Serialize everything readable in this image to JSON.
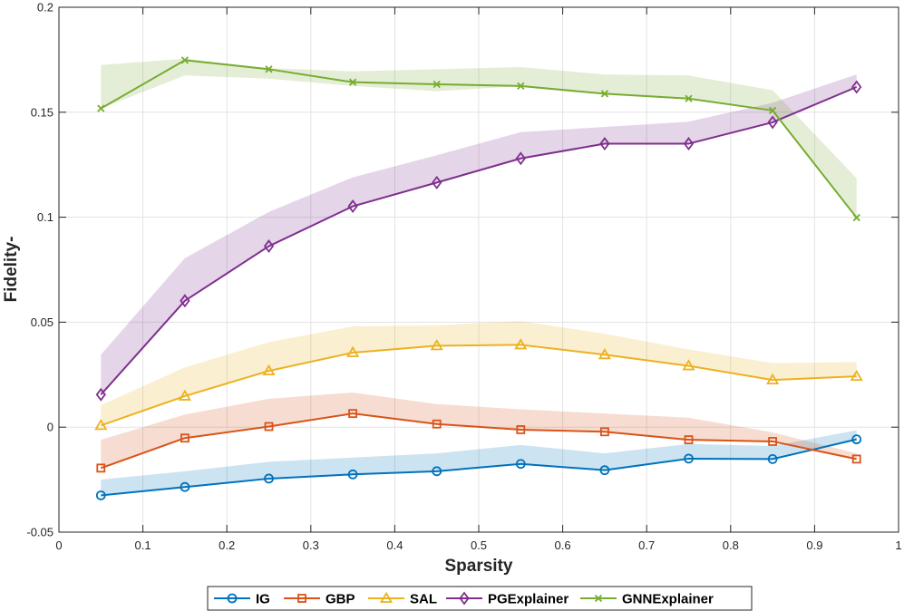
{
  "chart_data": {
    "type": "line",
    "title": "",
    "xlabel": "Sparsity",
    "ylabel": "Fidelity-",
    "xlim": [
      0,
      1
    ],
    "ylim": [
      -0.05,
      0.2
    ],
    "xticks": [
      0,
      0.1,
      0.2,
      0.3,
      0.4,
      0.5,
      0.6,
      0.7,
      0.8,
      0.9,
      1
    ],
    "xtick_labels": [
      "0",
      "0.1",
      "0.2",
      "0.3",
      "0.4",
      "0.5",
      "0.6",
      "0.7",
      "0.8",
      "0.9",
      "1"
    ],
    "yticks": [
      -0.05,
      0,
      0.05,
      0.1,
      0.15,
      0.2
    ],
    "ytick_labels": [
      "-0.05",
      "0",
      "0.05",
      "0.1",
      "0.15",
      "0.2"
    ],
    "grid": true,
    "legend_position": "bottom",
    "x": [
      0.05,
      0.15,
      0.25,
      0.35,
      0.45,
      0.55,
      0.65,
      0.75,
      0.85,
      0.95
    ],
    "series": [
      {
        "name": "IG",
        "color": "#0072BD",
        "marker": "circle",
        "values": [
          -0.0325,
          -0.0285,
          -0.0245,
          -0.0225,
          -0.021,
          -0.0175,
          -0.0205,
          -0.015,
          -0.0152,
          -0.0058
        ],
        "band_upper": [
          -0.025,
          -0.021,
          -0.0165,
          -0.0145,
          -0.0125,
          -0.0085,
          -0.0125,
          -0.008,
          -0.009,
          -0.0015
        ],
        "band_lower": [
          -0.0325,
          -0.0285,
          -0.0245,
          -0.0225,
          -0.021,
          -0.0175,
          -0.0205,
          -0.015,
          -0.015,
          -0.006
        ]
      },
      {
        "name": "GBP",
        "color": "#D95319",
        "marker": "square",
        "values": [
          -0.0195,
          -0.0052,
          0.0003,
          0.0065,
          0.0015,
          -0.0012,
          -0.0022,
          -0.006,
          -0.0068,
          -0.0152
        ],
        "band_upper": [
          -0.006,
          0.006,
          0.0135,
          0.0165,
          0.011,
          0.0085,
          0.0065,
          0.0045,
          -0.0025,
          -0.0125
        ],
        "band_lower": [
          -0.0195,
          -0.0052,
          0.0003,
          0.0065,
          0.0015,
          -0.0012,
          -0.0022,
          -0.006,
          -0.0068,
          -0.0152
        ]
      },
      {
        "name": "SAL",
        "color": "#EDB120",
        "marker": "triangle",
        "values": [
          0.0008,
          0.0148,
          0.0268,
          0.0355,
          0.0388,
          0.0392,
          0.0345,
          0.0292,
          0.0225,
          0.0242
        ],
        "band_upper": [
          0.0105,
          0.0285,
          0.0405,
          0.048,
          0.0485,
          0.0505,
          0.0445,
          0.037,
          0.0305,
          0.031
        ],
        "band_lower": [
          0.0008,
          0.0148,
          0.0268,
          0.0355,
          0.0388,
          0.0392,
          0.0345,
          0.0292,
          0.0225,
          0.0242
        ]
      },
      {
        "name": "PGExplainer",
        "color": "#7E2F8E",
        "marker": "diamond",
        "values": [
          0.0155,
          0.0602,
          0.0862,
          0.1052,
          0.1165,
          0.128,
          0.135,
          0.135,
          0.1452,
          0.162
        ],
        "band_upper": [
          0.0345,
          0.0805,
          0.1025,
          0.119,
          0.1295,
          0.1405,
          0.143,
          0.1455,
          0.1545,
          0.168
        ],
        "band_lower": [
          0.0155,
          0.0602,
          0.0862,
          0.1052,
          0.1165,
          0.128,
          0.135,
          0.135,
          0.1452,
          0.162
        ]
      },
      {
        "name": "GNNExplainer",
        "color": "#77AC30",
        "marker": "x",
        "values": [
          0.1518,
          0.1748,
          0.1705,
          0.1643,
          0.1633,
          0.1625,
          0.1588,
          0.1565,
          0.1508,
          0.0998
        ],
        "band_upper": [
          0.1725,
          0.1755,
          0.171,
          0.1695,
          0.1705,
          0.1715,
          0.168,
          0.1675,
          0.1605,
          0.1185
        ],
        "band_lower": [
          0.1518,
          0.1675,
          0.166,
          0.1625,
          0.16,
          0.1625,
          0.1588,
          0.1565,
          0.1508,
          0.0998
        ]
      }
    ]
  }
}
